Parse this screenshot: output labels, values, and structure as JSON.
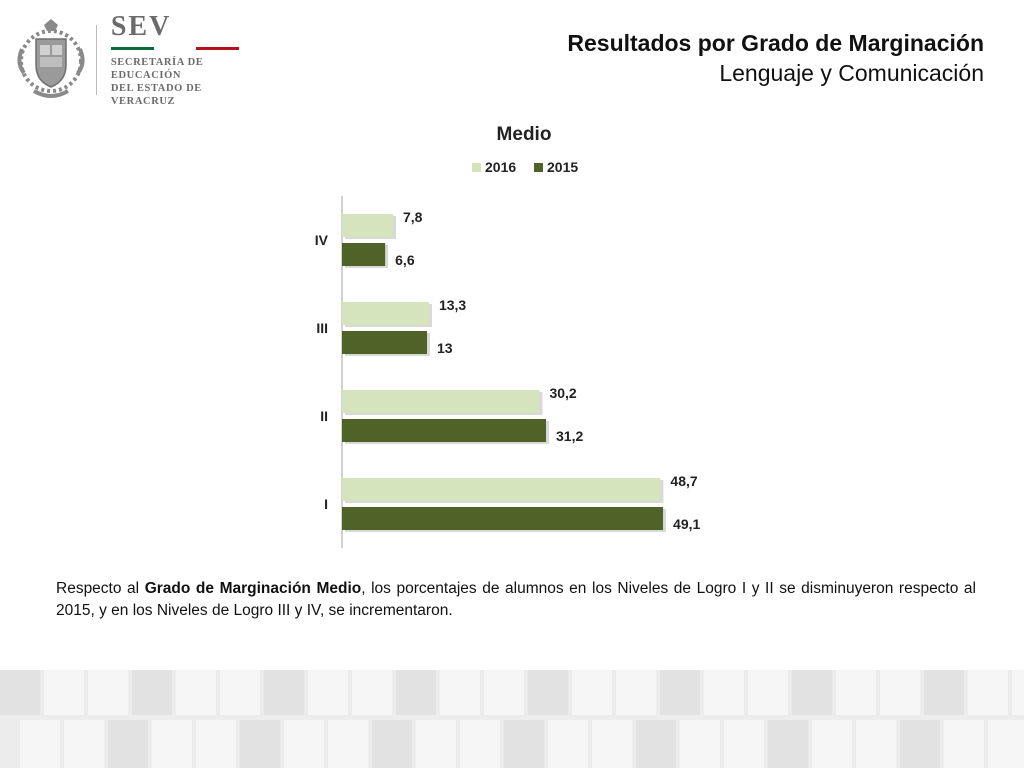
{
  "header": {
    "logo": {
      "brand": "SEV",
      "line1": "SECRETARÍA DE EDUCACIÓN",
      "line2": "DEL ESTADO DE VERACRUZ",
      "rule_colors": [
        "#0a6b3a",
        "#ffffff",
        "#b5121b"
      ]
    },
    "title": "Resultados por Grado de Marginación",
    "subtitle": "Lenguaje y Comunicación"
  },
  "chart_data": {
    "type": "bar",
    "orientation": "horizontal",
    "title": "Medio",
    "categories": [
      "IV",
      "III",
      "II",
      "I"
    ],
    "series": [
      {
        "name": "2016",
        "color": "#d6e4bd",
        "values": [
          7.8,
          13.3,
          30.2,
          48.7
        ],
        "labels": [
          "7,8",
          "13,3",
          "30,2",
          "48,7"
        ]
      },
      {
        "name": "2015",
        "color": "#4f6228",
        "values": [
          6.6,
          13,
          31.2,
          49.1
        ],
        "labels": [
          "6,6",
          "13",
          "31,2",
          "49,1"
        ]
      }
    ],
    "xlim": [
      0,
      52
    ],
    "legend_position": "top",
    "grid": false
  },
  "note": {
    "prefix": "Respecto al ",
    "bold": "Grado de Marginación Medio",
    "suffix": ", los porcentajes de alumnos en los Niveles de Logro I y II se disminuyeron respecto al 2015, y en los Niveles de Logro III y IV, se incrementaron."
  }
}
